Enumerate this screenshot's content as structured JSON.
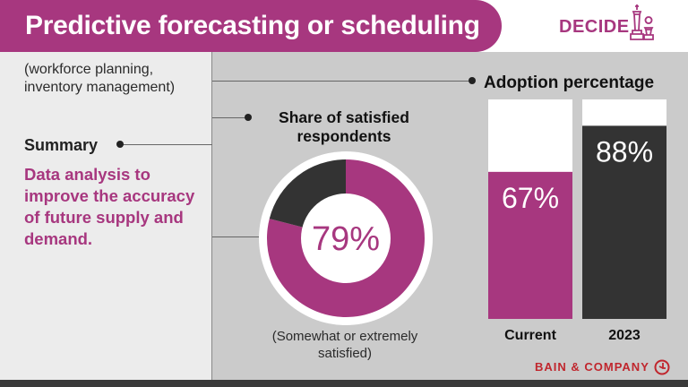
{
  "header": {
    "title": "Predictive forecasting or scheduling",
    "badge": "DECIDE",
    "badge_icon": "chess-pieces-icon",
    "accent_color": "#a7377f"
  },
  "left_panel": {
    "subtitle": "(workforce planning, inventory management)",
    "summary_label": "Summary",
    "summary_text": "Data analysis to improve the accuracy of future supply and demand."
  },
  "chart_data": [
    {
      "type": "pie",
      "title": "Share of satisfied respondents",
      "slices": [
        {
          "value": 79,
          "color": "#a7377f"
        },
        {
          "value": 21,
          "color": "#333333"
        }
      ],
      "center_label": "79%",
      "note": "(Somewhat or extremely satisfied)"
    },
    {
      "type": "bar",
      "title": "Adoption percentage",
      "categories": [
        "Current",
        "2023"
      ],
      "values": [
        67,
        88
      ],
      "value_labels": [
        "67%",
        "88%"
      ],
      "colors": [
        "#a7377f",
        "#333333"
      ],
      "ylim": [
        0,
        100
      ]
    }
  ],
  "footer": {
    "logo": "BAIN & COMPANY",
    "logo_icon": "bain-circle-icon",
    "logo_color": "#c0262d"
  }
}
